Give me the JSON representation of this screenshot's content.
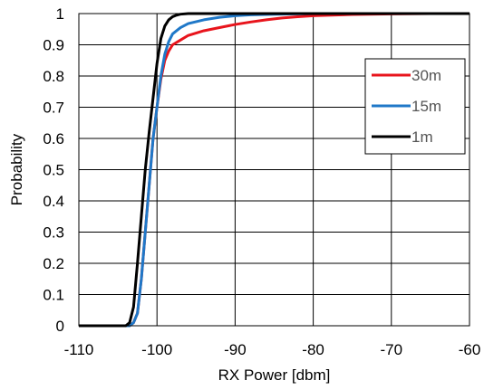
{
  "chart_data": {
    "type": "line",
    "title": "",
    "xlabel": "RX Power [dbm]",
    "ylabel": "Probability",
    "xlim": [
      -110,
      -60
    ],
    "ylim": [
      0,
      1
    ],
    "xticks": [
      "-110",
      "-100",
      "-90",
      "-80",
      "-70",
      "-60"
    ],
    "yticks": [
      "0",
      "0.1",
      "0.2",
      "0.3",
      "0.4",
      "0.5",
      "0.6",
      "0.7",
      "0.8",
      "0.9",
      "1"
    ],
    "grid": true,
    "legend_position": "right",
    "series": [
      {
        "name": "30m",
        "color": "#e8141c",
        "x": [
          -110,
          -103.5,
          -103,
          -102.5,
          -102,
          -101.5,
          -101,
          -100.5,
          -100,
          -99.5,
          -99,
          -98.5,
          -98,
          -97,
          -96,
          -94,
          -92,
          -90,
          -88,
          -86,
          -84,
          -82,
          -80,
          -75,
          -70,
          -65,
          -60
        ],
        "y": [
          0,
          0,
          0.01,
          0.04,
          0.15,
          0.3,
          0.45,
          0.6,
          0.7,
          0.79,
          0.85,
          0.88,
          0.9,
          0.915,
          0.93,
          0.945,
          0.955,
          0.965,
          0.973,
          0.98,
          0.986,
          0.99,
          0.993,
          0.997,
          0.999,
          1,
          1
        ]
      },
      {
        "name": "15m",
        "color": "#1f78c8",
        "x": [
          -110,
          -103.5,
          -103,
          -102.5,
          -102,
          -101.5,
          -101,
          -100.5,
          -100,
          -99.5,
          -99,
          -98.5,
          -98,
          -97,
          -96,
          -94,
          -92,
          -90,
          -88,
          -85,
          -80,
          -70,
          -60
        ],
        "y": [
          0,
          0,
          0.01,
          0.04,
          0.15,
          0.3,
          0.45,
          0.6,
          0.7,
          0.8,
          0.87,
          0.91,
          0.935,
          0.955,
          0.968,
          0.98,
          0.988,
          0.993,
          0.996,
          0.998,
          1,
          1,
          1
        ]
      },
      {
        "name": "1m",
        "color": "#000000",
        "x": [
          -110,
          -104,
          -103.5,
          -103,
          -102.5,
          -102,
          -101.5,
          -101,
          -100.5,
          -100,
          -99.5,
          -99,
          -98.5,
          -98,
          -97.5,
          -97,
          -96,
          -94,
          -90,
          -80,
          -70,
          -60
        ],
        "y": [
          0,
          0,
          0.01,
          0.06,
          0.2,
          0.35,
          0.5,
          0.62,
          0.73,
          0.84,
          0.92,
          0.96,
          0.98,
          0.99,
          0.995,
          0.998,
          1,
          1,
          1,
          1,
          1,
          1
        ]
      }
    ]
  }
}
